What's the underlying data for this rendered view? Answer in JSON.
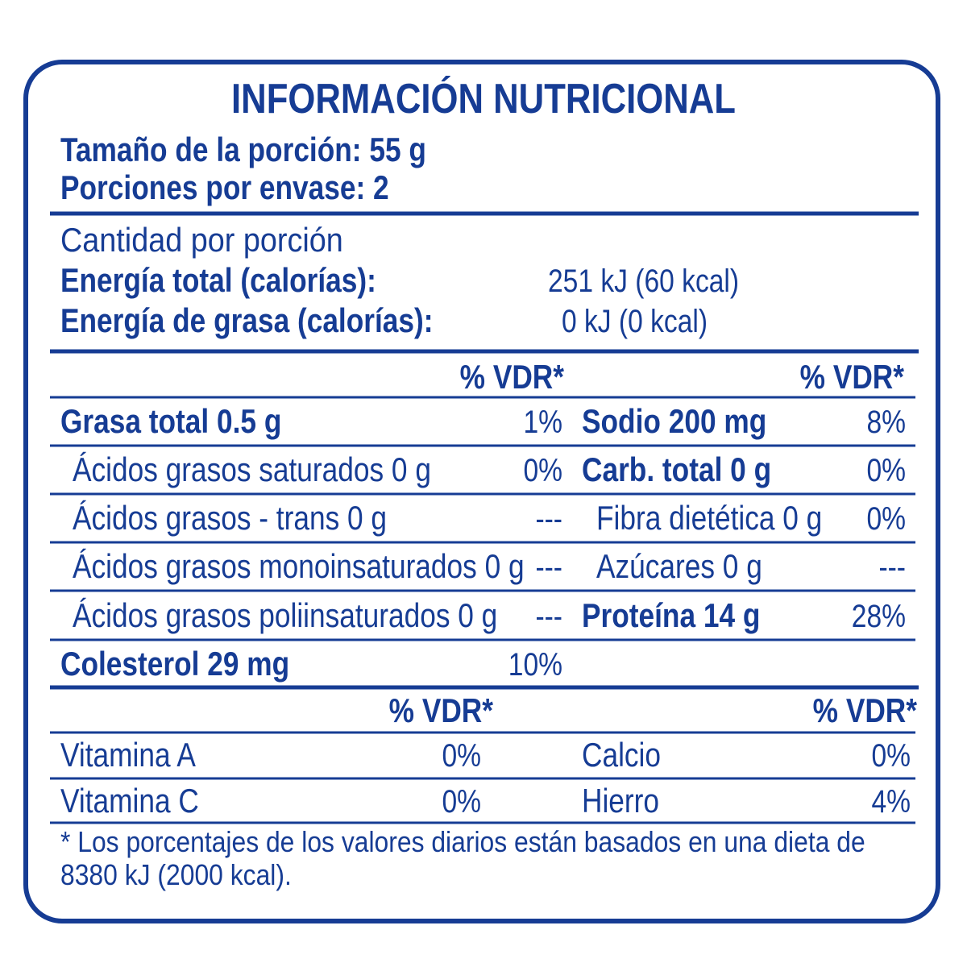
{
  "header": {
    "title": "INFORMACIÓN NUTRICIONAL",
    "serving_size": "Tamaño de la porción: 55 g",
    "servings": "Porciones por envase: 2"
  },
  "energy": {
    "heading": "Cantidad por porción",
    "rows": [
      [
        "Energía total (calorías):",
        "251 kJ (60 kcal)"
      ],
      [
        "Energía de grasa (calorías):",
        "0 kJ (0 kcal)"
      ]
    ]
  },
  "nutrients": {
    "left_header": "% VDR*",
    "right_header": "% VDR*",
    "left": [
      [
        "Grasa total 0.5 g",
        "1%"
      ],
      [
        "Ácidos grasos saturados 0 g",
        "0%"
      ],
      [
        "Ácidos grasos - trans 0 g",
        "---"
      ],
      [
        "Ácidos grasos monoinsaturados 0 g",
        "---"
      ],
      [
        "Ácidos grasos poliinsaturados 0 g",
        "---"
      ],
      [
        "Colesterol 29 mg",
        "10%"
      ]
    ],
    "right": [
      [
        "Sodio 200 mg",
        "8%"
      ],
      [
        "Carb. total 0 g",
        "0%"
      ],
      [
        "Fibra dietética 0 g",
        "0%"
      ],
      [
        "Azúcares 0 g",
        "---"
      ],
      [
        "Proteína 14 g",
        "28%"
      ]
    ]
  },
  "vitamins": {
    "left_header": "% VDR*",
    "right_header": "% VDR*",
    "left": [
      [
        "Vitamina A",
        "0%"
      ],
      [
        "Vitamina C",
        "0%"
      ]
    ],
    "right": [
      [
        "Calcio",
        "0%"
      ],
      [
        "Hierro",
        "4%"
      ]
    ]
  },
  "footnote": [
    "* Los porcentajes de los valores diarios están basados en una dieta de",
    "8380 kJ (2000 kcal)."
  ]
}
